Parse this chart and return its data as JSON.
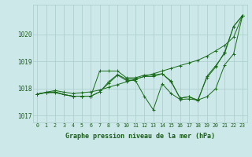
{
  "xlabel": "Graphe pression niveau de la mer (hPa)",
  "ylabel": "",
  "bg_color": "#cce8e8",
  "grid_color": "#aacccc",
  "line_color": "#1a6b1a",
  "marker_color": "#1a6b1a",
  "text_color": "#1a5c1a",
  "ylim": [
    1016.75,
    1021.1
  ],
  "yticks": [
    1017,
    1018,
    1019,
    1020
  ],
  "xticks": [
    0,
    1,
    2,
    3,
    4,
    5,
    6,
    7,
    8,
    9,
    10,
    11,
    12,
    13,
    14,
    15,
    16,
    17,
    18,
    19,
    20,
    21,
    22,
    23
  ],
  "series": [
    [
      1017.8,
      1017.87,
      1017.93,
      1017.87,
      1017.82,
      1017.85,
      1017.88,
      1017.95,
      1018.05,
      1018.15,
      1018.25,
      1018.35,
      1018.45,
      1018.55,
      1018.65,
      1018.75,
      1018.85,
      1018.95,
      1019.05,
      1019.2,
      1019.4,
      1019.6,
      1019.9,
      1020.7
    ],
    [
      1017.8,
      1017.85,
      1017.85,
      1017.78,
      1017.72,
      1017.72,
      1017.72,
      1018.65,
      1018.65,
      1018.65,
      1018.4,
      1018.4,
      1018.5,
      1018.5,
      1018.55,
      1018.25,
      1017.65,
      1017.7,
      1017.58,
      1018.4,
      1018.8,
      1019.35,
      1020.3,
      1020.7
    ],
    [
      1017.8,
      1017.85,
      1017.88,
      1017.78,
      1017.72,
      1017.72,
      1017.72,
      1017.88,
      1018.25,
      1018.52,
      1018.35,
      1018.35,
      1018.45,
      1018.45,
      1018.55,
      1018.28,
      1017.65,
      1017.7,
      1017.55,
      1018.45,
      1018.85,
      1019.3,
      1020.3,
      1020.7
    ],
    [
      1017.8,
      1017.85,
      1017.88,
      1017.78,
      1017.72,
      1017.72,
      1017.72,
      1017.88,
      1018.2,
      1018.5,
      1018.3,
      1018.3,
      1017.72,
      1017.22,
      1018.18,
      1017.82,
      1017.6,
      1017.62,
      1017.58,
      1017.7,
      1018.0,
      1018.88,
      1019.28,
      1020.7
    ]
  ]
}
